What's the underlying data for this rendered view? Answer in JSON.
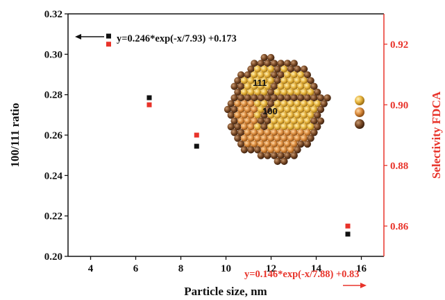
{
  "chart_data": {
    "type": "scatter",
    "xlabel": "Particle size, nm",
    "ylabel_left": "100/111 ratio",
    "ylabel_right": "Selectivity FDCA",
    "xlim": [
      3,
      17
    ],
    "ylim_left": [
      0.2,
      0.32
    ],
    "ylim_right": [
      0.85,
      0.93
    ],
    "x_ticks": [
      "4",
      "6",
      "8",
      "10",
      "12",
      "14",
      "16"
    ],
    "y_left_ticks": [
      "0.20",
      "0.22",
      "0.24",
      "0.26",
      "0.28",
      "0.30",
      "0.32"
    ],
    "y_right_ticks": [
      "0.86",
      "0.88",
      "0.90",
      "0.92"
    ],
    "grid": false,
    "series": [
      {
        "axis": "left",
        "color": "#111111",
        "marker": "square",
        "x": [
          4.8,
          6.6,
          8.7,
          15.4
        ],
        "y": [
          0.309,
          0.2785,
          0.2545,
          0.211
        ]
      },
      {
        "axis": "right",
        "color": "#e8332a",
        "marker": "square",
        "x": [
          4.8,
          6.6,
          8.7,
          15.4
        ],
        "y": [
          0.92,
          0.9,
          0.89,
          0.86
        ]
      }
    ],
    "annotations": [
      {
        "text": "y=0.246*exp(-x/7.93) +0.173",
        "color": "#111111",
        "arrow": "left"
      },
      {
        "text": "y=0.146*exp(-x/7.88) +0.83",
        "color": "#e8332a",
        "arrow": "right"
      }
    ],
    "inset_labels": [
      "111",
      "100"
    ],
    "legend_sphere_colors": [
      "#e8b84a",
      "#d98a3c",
      "#7a4a26"
    ],
    "colors": {
      "axis": "#111111",
      "right_axis": "#e8332a"
    }
  }
}
